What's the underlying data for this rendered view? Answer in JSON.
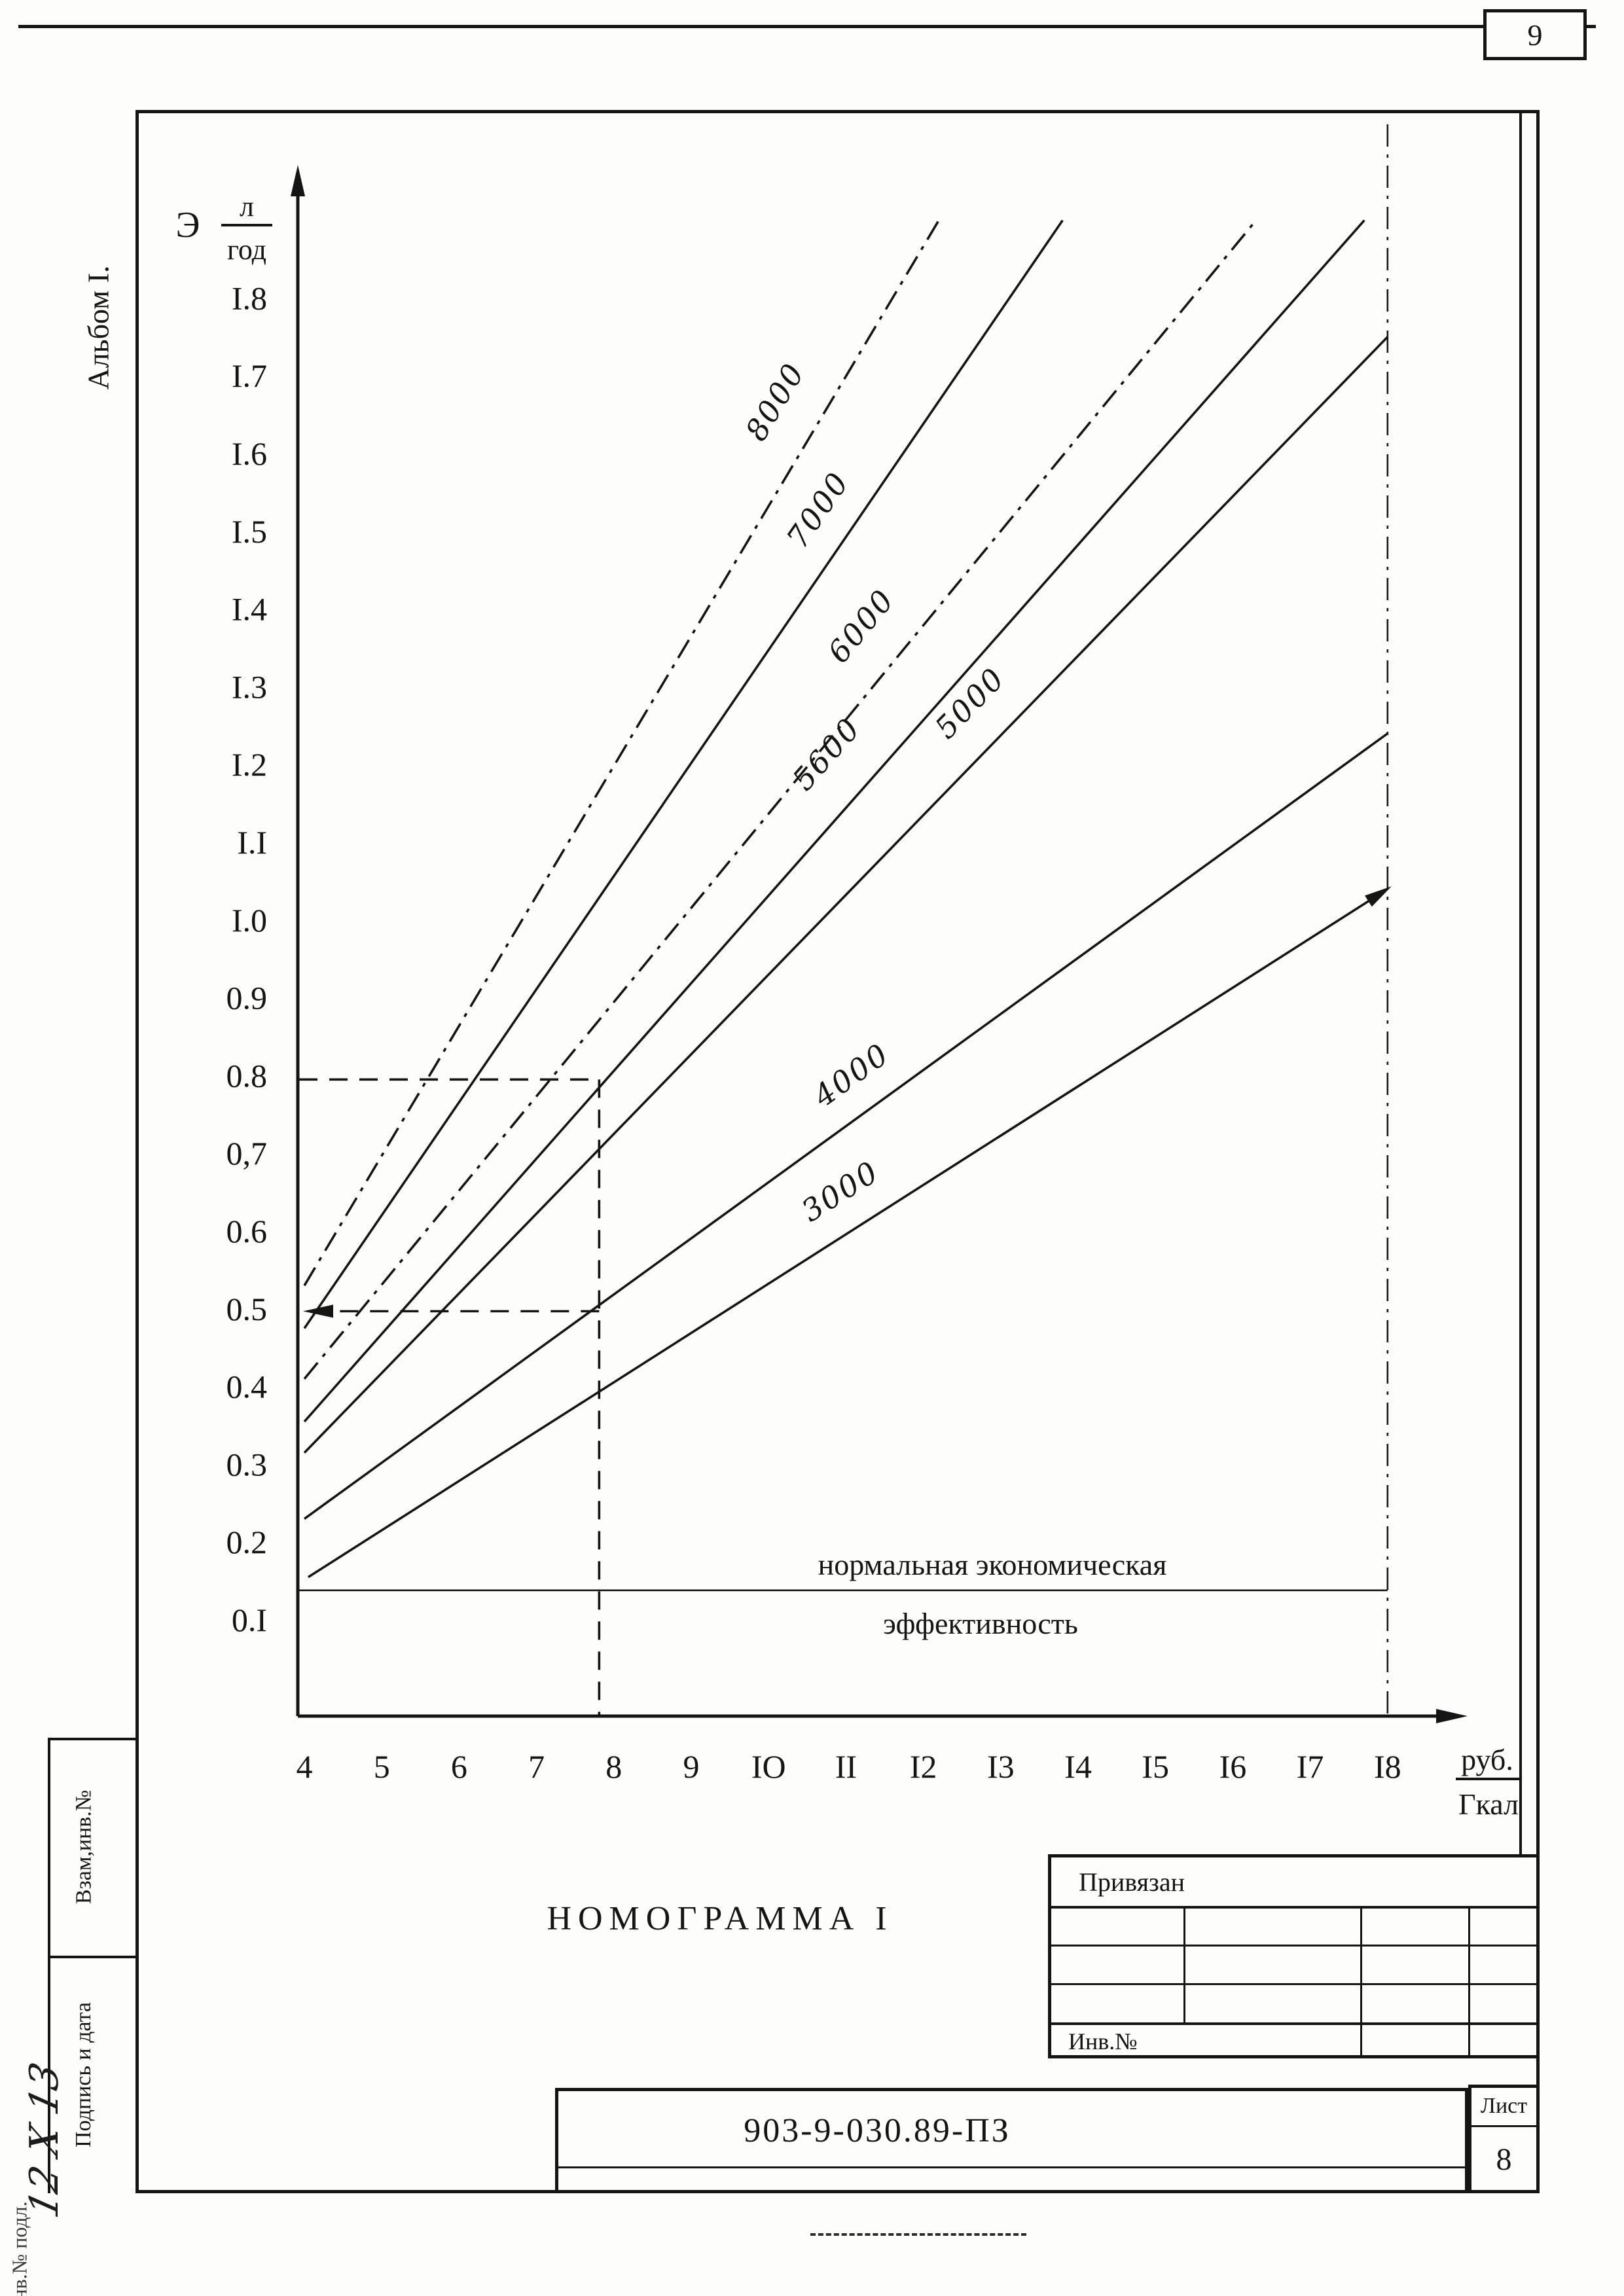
{
  "page": {
    "sheet_number_top": "9",
    "album_label": "Альбом I.",
    "doc_number": "903-9-030.89-ПЗ"
  },
  "margin": {
    "cell_labels": [
      "Взам,инв.№",
      "Подпись и дата"
    ],
    "corner_label": "Инв.№ подл.",
    "handwritten_mark": "12 X 13"
  },
  "title_block": {
    "binding_label": "Привязан",
    "inventory_label": "Инв.№",
    "sheet_label": "Лист",
    "sheet_number": "8"
  },
  "chart_data": {
    "type": "line",
    "title": "НОМОГРАММА I",
    "grid": false,
    "legend": "inline-rotated-labels",
    "x_axis": {
      "unit_numerator": "руб.",
      "unit_denominator": "Гкал",
      "range": [
        4,
        18
      ],
      "ticks": [
        {
          "v": 4,
          "label": "4"
        },
        {
          "v": 5,
          "label": "5"
        },
        {
          "v": 6,
          "label": "6"
        },
        {
          "v": 7,
          "label": "7"
        },
        {
          "v": 8,
          "label": "8"
        },
        {
          "v": 9,
          "label": "9"
        },
        {
          "v": 10,
          "label": "IO"
        },
        {
          "v": 11,
          "label": "II"
        },
        {
          "v": 12,
          "label": "I2"
        },
        {
          "v": 13,
          "label": "I3"
        },
        {
          "v": 14,
          "label": "I4"
        },
        {
          "v": 15,
          "label": "I5"
        },
        {
          "v": 16,
          "label": "I6"
        },
        {
          "v": 17,
          "label": "I7"
        },
        {
          "v": 18,
          "label": "I8"
        }
      ]
    },
    "y_axis": {
      "symbol": "Э",
      "unit_numerator": "л",
      "unit_denominator": "год",
      "range": [
        0.1,
        1.9
      ],
      "ticks": [
        {
          "v": 1.8,
          "label": "I.8"
        },
        {
          "v": 1.7,
          "label": "I.7"
        },
        {
          "v": 1.6,
          "label": "I.6"
        },
        {
          "v": 1.5,
          "label": "I.5"
        },
        {
          "v": 1.4,
          "label": "I.4"
        },
        {
          "v": 1.3,
          "label": "I.3"
        },
        {
          "v": 1.2,
          "label": "I.2"
        },
        {
          "v": 1.1,
          "label": "I.I"
        },
        {
          "v": 1.0,
          "label": "I.0"
        },
        {
          "v": 0.9,
          "label": "0.9"
        },
        {
          "v": 0.8,
          "label": "0.8"
        },
        {
          "v": 0.7,
          "label": "0,7"
        },
        {
          "v": 0.6,
          "label": "0.6"
        },
        {
          "v": 0.5,
          "label": "0.5"
        },
        {
          "v": 0.4,
          "label": "0.4"
        },
        {
          "v": 0.3,
          "label": "0.3"
        },
        {
          "v": 0.2,
          "label": "0.2"
        },
        {
          "v": 0.1,
          "label": "0.I"
        }
      ]
    },
    "series": [
      {
        "name": "8000",
        "x1": 4,
        "y1": 0.53,
        "x2": 12.2,
        "y2": 1.9,
        "style": "dashdot",
        "label_x": 10.2,
        "label_y": 1.66
      },
      {
        "name": "7000",
        "x1": 4,
        "y1": 0.475,
        "x2": 13.8,
        "y2": 1.9,
        "style": "solid",
        "label_x": 10.75,
        "label_y": 1.52
      },
      {
        "name": "6000",
        "x1": 4,
        "y1": 0.41,
        "x2": 16.3,
        "y2": 1.9,
        "style": "dashdot",
        "label_x": 11.3,
        "label_y": 1.37
      },
      {
        "name": "5600",
        "x1": 4,
        "y1": 0.355,
        "x2": 17.7,
        "y2": 1.9,
        "style": "solid",
        "label_x": 10.85,
        "label_y": 1.205
      },
      {
        "name": "5000",
        "x1": 4,
        "y1": 0.315,
        "x2": 18,
        "y2": 1.75,
        "style": "solid",
        "label_x": 12.7,
        "label_y": 1.27
      },
      {
        "name": "4000",
        "x1": 4,
        "y1": 0.23,
        "x2": 18,
        "y2": 1.24,
        "style": "solid",
        "label_x": 11.15,
        "label_y": 0.79
      },
      {
        "name": "3000",
        "x1": 4.05,
        "y1": 0.155,
        "x2": 18,
        "y2": 1.04,
        "style": "solid",
        "arrow_end": true,
        "label_x": 11.0,
        "label_y": 0.64
      }
    ],
    "threshold": {
      "y": 0.138,
      "label_line1": "нормальная экономическая",
      "label_line2": "эффективность"
    },
    "construction": {
      "entry_y": 0.795,
      "drop_x": 7.81,
      "result_y": 0.497,
      "right_guide_x": 18
    }
  }
}
